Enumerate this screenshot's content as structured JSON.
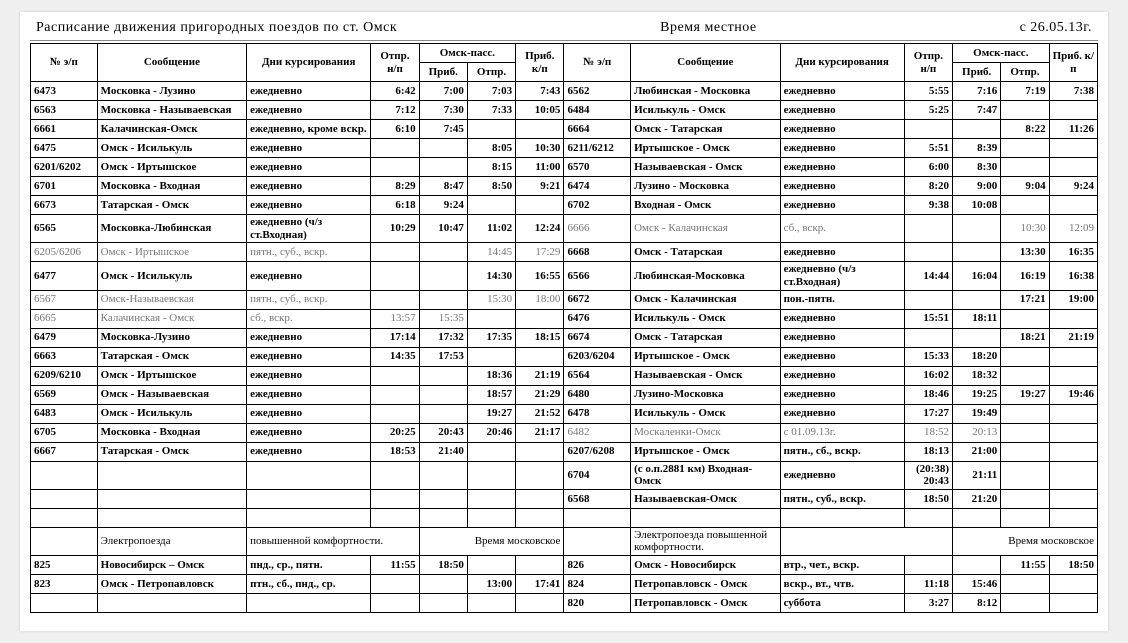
{
  "header": {
    "title": "Расписание движения  пригородных  поездов  по  ст. Омск",
    "time_note": "Время  местное",
    "from_date": "с 26.05.13г."
  },
  "columns": {
    "num": "№ э/п",
    "route": "Сообщение",
    "days": "Дни курсирования",
    "omsk_pass": "Омск-пасс.",
    "dep_np": "Отпр. н/п",
    "arr": "Приб.",
    "dep": "Отпр.",
    "arr_kp": "Приб. к/п"
  },
  "left_rows": [
    {
      "num": "6473",
      "route": "Московка - Лузино",
      "days": "ежедневно",
      "dep_np": "6:42",
      "arr": "7:00",
      "dep": "7:03",
      "arr_kp": "7:43",
      "b": true
    },
    {
      "num": "6563",
      "route": "Московка - Называевская",
      "days": "ежедневно",
      "dep_np": "7:12",
      "arr": "7:30",
      "dep": "7:33",
      "arr_kp": "10:05",
      "b": true
    },
    {
      "num": "6661",
      "route": "Калачинская-Омск",
      "days": "ежедневно, кроме вскр.",
      "dep_np": "6:10",
      "arr": "7:45",
      "dep": "",
      "arr_kp": "",
      "b": true
    },
    {
      "num": "6475",
      "route": "Омск - Исилькуль",
      "days": "ежедневно",
      "dep_np": "",
      "arr": "",
      "dep": "8:05",
      "arr_kp": "10:30",
      "b": true
    },
    {
      "num": "6201/6202",
      "route": "Омск - Иртышское",
      "days": "ежедневно",
      "dep_np": "",
      "arr": "",
      "dep": "8:15",
      "arr_kp": "11:00",
      "b": true
    },
    {
      "num": "6701",
      "route": "Московка - Входная",
      "days": "ежедневно",
      "dep_np": "8:29",
      "arr": "8:47",
      "dep": "8:50",
      "arr_kp": "9:21",
      "b": true
    },
    {
      "num": "6673",
      "route": "Татарская - Омск",
      "days": "ежедневно",
      "dep_np": "6:18",
      "arr": "9:24",
      "dep": "",
      "arr_kp": "",
      "b": true
    },
    {
      "num": "6565",
      "route": "Московка-Любинская",
      "days": "ежедневно (ч/з ст.Входная)",
      "dep_np": "10:29",
      "arr": "10:47",
      "dep": "11:02",
      "arr_kp": "12:24",
      "b": true
    },
    {
      "num": "6205/6206",
      "route": "Омск - Иртышское",
      "days": "пятн.,  суб.,  вскр.",
      "dep_np": "",
      "arr": "",
      "dep": "14:45",
      "arr_kp": "17:29",
      "g": true
    },
    {
      "num": "6477",
      "route": "Омск - Исилькуль",
      "days": "ежедневно",
      "dep_np": "",
      "arr": "",
      "dep": "14:30",
      "arr_kp": "16:55",
      "b": true
    },
    {
      "num": "6567",
      "route": "Омск-Называевская",
      "days": "пятн.,  суб.,  вскр.",
      "dep_np": "",
      "arr": "",
      "dep": "15:30",
      "arr_kp": "18:00",
      "g": true
    },
    {
      "num": "6665",
      "route": "Калачинская - Омск",
      "days": "сб., вскр.",
      "dep_np": "13:57",
      "arr": "15:35",
      "dep": "",
      "arr_kp": "",
      "g": true
    },
    {
      "num": "6479",
      "route": "Московка-Лузино",
      "days": "ежедневно",
      "dep_np": "17:14",
      "arr": "17:32",
      "dep": "17:35",
      "arr_kp": "18:15",
      "b": true
    },
    {
      "num": "6663",
      "route": "Татарская - Омск",
      "days": "ежедневно",
      "dep_np": "14:35",
      "arr": "17:53",
      "dep": "",
      "arr_kp": "",
      "b": true
    },
    {
      "num": "6209/6210",
      "route": "Омск - Иртышское",
      "days": "ежедневно",
      "dep_np": "",
      "arr": "",
      "dep": "18:36",
      "arr_kp": "21:19",
      "b": true
    },
    {
      "num": "6569",
      "route": "Омск - Называевская",
      "days": "ежедневно",
      "dep_np": "",
      "arr": "",
      "dep": "18:57",
      "arr_kp": "21:29",
      "b": true
    },
    {
      "num": "6483",
      "route": "Омск - Исилькуль",
      "days": "ежедневно",
      "dep_np": "",
      "arr": "",
      "dep": "19:27",
      "arr_kp": "21:52",
      "b": true
    },
    {
      "num": "6705",
      "route": "Московка - Входная",
      "days": "ежедневно",
      "dep_np": "20:25",
      "arr": "20:43",
      "dep": "20:46",
      "arr_kp": "21:17",
      "b": true
    },
    {
      "num": "6667",
      "route": "Татарская - Омск",
      "days": "ежедневно",
      "dep_np": "18:53",
      "arr": "21:40",
      "dep": "",
      "arr_kp": "",
      "b": true
    },
    {
      "blank": true
    },
    {
      "blank": true
    },
    {
      "blank": true
    },
    {
      "route": "Электропоезда",
      "days": "повышенной  комфортности.",
      "dep": "Время московское",
      "merge_note": true
    },
    {
      "num": "825",
      "route": "Новосибирск – Омск",
      "days": "пнд., ср., пятн.",
      "dep_np": "11:55",
      "arr": "18:50",
      "dep": "",
      "arr_kp": "",
      "b": true
    },
    {
      "num": "823",
      "route": "Омск - Петропавловск",
      "days": "птн., сб., пнд., ср.",
      "dep_np": "",
      "arr": "",
      "dep": "13:00",
      "arr_kp": "17:41",
      "b": true
    }
  ],
  "right_rows": [
    {
      "num": "6562",
      "route": "Любинская - Московка",
      "days": "ежедневно",
      "dep_np": "5:55",
      "arr": "7:16",
      "dep": "7:19",
      "arr_kp": "7:38",
      "b": true
    },
    {
      "num": "6484",
      "route": "Исилькуль - Омск",
      "days": "ежедневно",
      "dep_np": "5:25",
      "arr": "7:47",
      "dep": "",
      "arr_kp": "",
      "b": true
    },
    {
      "num": "6664",
      "route": "Омск - Татарская",
      "days": "ежедневно",
      "dep_np": "",
      "arr": "",
      "dep": "8:22",
      "arr_kp": "11:26",
      "b": true
    },
    {
      "num": "6211/6212",
      "route": "Иртышское - Омск",
      "days": "ежедневно",
      "dep_np": "5:51",
      "arr": "8:39",
      "dep": "",
      "arr_kp": "",
      "b": true
    },
    {
      "num": "6570",
      "route": "Называевская - Омск",
      "days": "ежедневно",
      "dep_np": "6:00",
      "arr": "8:30",
      "dep": "",
      "arr_kp": "",
      "b": true
    },
    {
      "num": "6474",
      "route": "Лузино - Московка",
      "days": "ежедневно",
      "dep_np": "8:20",
      "arr": "9:00",
      "dep": "9:04",
      "arr_kp": "9:24",
      "b": true
    },
    {
      "num": "6702",
      "route": "Входная - Омск",
      "days": "ежедневно",
      "dep_np": "9:38",
      "arr": "10:08",
      "dep": "",
      "arr_kp": "",
      "b": true
    },
    {
      "num": "6666",
      "route": "Омск - Калачинская",
      "days": "сб., вскр.",
      "dep_np": "",
      "arr": "",
      "dep": "10:30",
      "arr_kp": "12:09",
      "g": true
    },
    {
      "num": "6668",
      "route": "Омск - Татарская",
      "days": "ежедневно",
      "dep_np": "",
      "arr": "",
      "dep": "13:30",
      "arr_kp": "16:35",
      "b": true
    },
    {
      "num": "6566",
      "route": "Любинская-Московка",
      "days": "ежедневно (ч/з ст.Входная)",
      "dep_np": "14:44",
      "arr": "16:04",
      "dep": "16:19",
      "arr_kp": "16:38",
      "b": true
    },
    {
      "num": "6672",
      "route": "Омск - Калачинская",
      "days": "пон.-пятн.",
      "dep_np": "",
      "arr": "",
      "dep": "17:21",
      "arr_kp": "19:00",
      "b": true
    },
    {
      "num": "6476",
      "route": "Исилькуль - Омск",
      "days": "ежедневно",
      "dep_np": "15:51",
      "arr": "18:11",
      "dep": "",
      "arr_kp": "",
      "b": true
    },
    {
      "num": "6674",
      "route": "Омск - Татарская",
      "days": "ежедневно",
      "dep_np": "",
      "arr": "",
      "dep": "18:21",
      "arr_kp": "21:19",
      "b": true
    },
    {
      "num": "6203/6204",
      "route": "Иртышское - Омск",
      "days": "ежедневно",
      "dep_np": "15:33",
      "arr": "18:20",
      "dep": "",
      "arr_kp": "",
      "b": true
    },
    {
      "num": "6564",
      "route": "Называевская - Омск",
      "days": "ежедневно",
      "dep_np": "16:02",
      "arr": "18:32",
      "dep": "",
      "arr_kp": "",
      "b": true
    },
    {
      "num": "6480",
      "route": "Лузино-Московка",
      "days": "ежедневно",
      "dep_np": "18:46",
      "arr": "19:25",
      "dep": "19:27",
      "arr_kp": "19:46",
      "b": true
    },
    {
      "num": "6478",
      "route": "Исилькуль - Омск",
      "days": "ежедневно",
      "dep_np": "17:27",
      "arr": "19:49",
      "dep": "",
      "arr_kp": "",
      "b": true
    },
    {
      "num": "6482",
      "route": "Москаленки-Омск",
      "days": "с 01.09.13г.",
      "dep_np": "18:52",
      "arr": "20:13",
      "dep": "",
      "arr_kp": "",
      "g": true
    },
    {
      "num": "6207/6208",
      "route": "Иртышское - Омск",
      "days": "пятн., сб.,  вскр.",
      "dep_np": "18:13",
      "arr": "21:00",
      "dep": "",
      "arr_kp": "",
      "b": true
    },
    {
      "num": "6704",
      "route": "(с о.п.2881 км) Входная-Омск",
      "days": "ежедневно",
      "dep_np": "(20:38) 20:43",
      "arr": "21:11",
      "dep": "",
      "arr_kp": "",
      "b": true
    },
    {
      "num": "6568",
      "route": "Называевская-Омск",
      "days": "пятн.,  суб., вскр.",
      "dep_np": "18:50",
      "arr": "21:20",
      "dep": "",
      "arr_kp": "",
      "b": true
    },
    {
      "blank": true
    },
    {
      "route": "Электропоезда повышенной  комфортности.",
      "days": "",
      "dep": "Время московское",
      "merge_note": true
    },
    {
      "num": "826",
      "route": "Омск - Новосибирск",
      "days": "втр., чет., вскр.",
      "dep_np": "",
      "arr": "",
      "dep": "11:55",
      "arr_kp": "18:50",
      "b": true
    },
    {
      "num": "824",
      "route": "Петропавловск - Омск",
      "days": "вскр., вт., чтв.",
      "dep_np": "11:18",
      "arr": "15:46",
      "dep": "",
      "arr_kp": "",
      "b": true
    },
    {
      "num": "820",
      "route": "Петропавловск - Омск",
      "days": "суббота",
      "dep_np": "3:27",
      "arr": "8:12",
      "dep": "",
      "arr_kp": "",
      "b": true
    }
  ]
}
